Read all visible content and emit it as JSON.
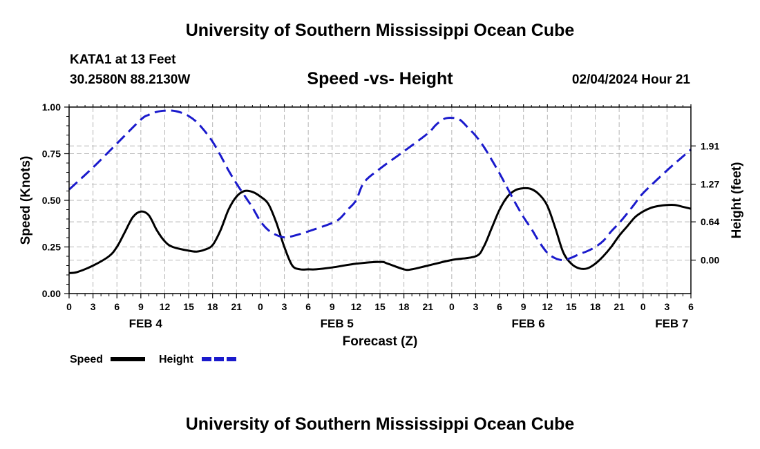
{
  "header": {
    "main_title": "University of Southern Mississippi Ocean Cube",
    "station": "KATA1 at 13 Feet",
    "coordinates": "30.2580N  88.2130W",
    "subtitle": "Speed -vs- Height",
    "datetime": "02/04/2024 Hour 21",
    "footer_title": "University of Southern Mississippi Ocean Cube"
  },
  "chart_data": {
    "type": "line",
    "title": "Speed -vs- Height",
    "xlabel": "Forecast (Z)",
    "ylabel_left": "Speed (Knots)",
    "ylabel_right": "Height (feet)",
    "x_unit": "hours since FEB 4 00Z",
    "xlim": [
      0,
      78
    ],
    "ylim_left": [
      0,
      1.0
    ],
    "ylim_right": [
      -0.56,
      2.56
    ],
    "grid": true,
    "left_ticks": [
      {
        "value": 0.0,
        "label": "0.00"
      },
      {
        "value": 0.25,
        "label": "0.25"
      },
      {
        "value": 0.5,
        "label": "0.50"
      },
      {
        "value": 0.75,
        "label": "0.75"
      },
      {
        "value": 1.0,
        "label": "1.00"
      }
    ],
    "right_ticks": [
      {
        "value": 0.0,
        "label": "0.00"
      },
      {
        "value": 0.64,
        "label": "0.64"
      },
      {
        "value": 1.27,
        "label": "1.27"
      },
      {
        "value": 1.91,
        "label": "1.91"
      }
    ],
    "x_ticks": [
      {
        "value": 0,
        "label": "0"
      },
      {
        "value": 3,
        "label": "3"
      },
      {
        "value": 6,
        "label": "6"
      },
      {
        "value": 9,
        "label": "9"
      },
      {
        "value": 12,
        "label": "12"
      },
      {
        "value": 15,
        "label": "15"
      },
      {
        "value": 18,
        "label": "18"
      },
      {
        "value": 21,
        "label": "21"
      },
      {
        "value": 24,
        "label": "0"
      },
      {
        "value": 27,
        "label": "3"
      },
      {
        "value": 30,
        "label": "6"
      },
      {
        "value": 33,
        "label": "9"
      },
      {
        "value": 36,
        "label": "12"
      },
      {
        "value": 39,
        "label": "15"
      },
      {
        "value": 42,
        "label": "18"
      },
      {
        "value": 45,
        "label": "21"
      },
      {
        "value": 48,
        "label": "0"
      },
      {
        "value": 51,
        "label": "3"
      },
      {
        "value": 54,
        "label": "6"
      },
      {
        "value": 57,
        "label": "9"
      },
      {
        "value": 60,
        "label": "12"
      },
      {
        "value": 63,
        "label": "15"
      },
      {
        "value": 66,
        "label": "18"
      },
      {
        "value": 69,
        "label": "21"
      },
      {
        "value": 72,
        "label": "0"
      },
      {
        "value": 75,
        "label": "3"
      },
      {
        "value": 78,
        "label": "6"
      }
    ],
    "day_labels": [
      {
        "value": 9.6,
        "label": "FEB 4"
      },
      {
        "value": 33.6,
        "label": "FEB 5"
      },
      {
        "value": 57.6,
        "label": "FEB 6"
      },
      {
        "value": 75.6,
        "label": "FEB 7"
      }
    ],
    "series": [
      {
        "name": "Speed",
        "axis": "left",
        "color": "#000000",
        "dash": "solid",
        "x": [
          0,
          1,
          3,
          5,
          6,
          7,
          8,
          9,
          10,
          11,
          12,
          13,
          15,
          16,
          17,
          18,
          19,
          20,
          21,
          22,
          23,
          24,
          25,
          26,
          27,
          28,
          29,
          30,
          31,
          33,
          36,
          39,
          40,
          42,
          43,
          45,
          48,
          51,
          52,
          53,
          54,
          55,
          56,
          57,
          58,
          59,
          60,
          61,
          62,
          63,
          64,
          65,
          66,
          67,
          68,
          69,
          70,
          71,
          72,
          73,
          74,
          75,
          76,
          77,
          78
        ],
        "values": [
          0.11,
          0.115,
          0.15,
          0.2,
          0.25,
          0.33,
          0.41,
          0.44,
          0.42,
          0.34,
          0.28,
          0.25,
          0.23,
          0.225,
          0.235,
          0.26,
          0.34,
          0.45,
          0.52,
          0.55,
          0.545,
          0.52,
          0.48,
          0.38,
          0.25,
          0.15,
          0.13,
          0.13,
          0.13,
          0.14,
          0.16,
          0.17,
          0.16,
          0.13,
          0.13,
          0.15,
          0.18,
          0.2,
          0.25,
          0.35,
          0.45,
          0.52,
          0.555,
          0.565,
          0.56,
          0.53,
          0.47,
          0.35,
          0.22,
          0.16,
          0.135,
          0.135,
          0.16,
          0.2,
          0.25,
          0.31,
          0.36,
          0.41,
          0.44,
          0.46,
          0.47,
          0.475,
          0.475,
          0.465,
          0.455
        ]
      },
      {
        "name": "Height",
        "axis": "right",
        "color": "#1a1acc",
        "dash": "dashed",
        "x": [
          0,
          3,
          6,
          9,
          10,
          11,
          12,
          13,
          14,
          15,
          16,
          17,
          18,
          19,
          20,
          21,
          22,
          23,
          24,
          25,
          26,
          27,
          28,
          30,
          33,
          34,
          35,
          36,
          37,
          39,
          42,
          45,
          46,
          47,
          48,
          49,
          50,
          51,
          52,
          53,
          54,
          55,
          56,
          57,
          58,
          59,
          60,
          61,
          62,
          63,
          64,
          65,
          66,
          67,
          68,
          69,
          70,
          71,
          72,
          75,
          78
        ],
        "values": [
          1.18,
          1.55,
          1.95,
          2.35,
          2.43,
          2.48,
          2.5,
          2.5,
          2.47,
          2.41,
          2.31,
          2.16,
          1.98,
          1.75,
          1.5,
          1.28,
          1.08,
          0.88,
          0.65,
          0.5,
          0.42,
          0.38,
          0.4,
          0.48,
          0.62,
          0.7,
          0.85,
          1.0,
          1.3,
          1.53,
          1.82,
          2.12,
          2.26,
          2.36,
          2.38,
          2.35,
          2.22,
          2.08,
          1.9,
          1.68,
          1.45,
          1.2,
          0.95,
          0.72,
          0.52,
          0.3,
          0.12,
          0.03,
          0.0,
          0.04,
          0.1,
          0.15,
          0.22,
          0.32,
          0.48,
          0.62,
          0.78,
          0.95,
          1.12,
          1.5,
          1.85
        ]
      }
    ],
    "legend": [
      {
        "label": "Speed",
        "color": "#000000",
        "dash": "solid"
      },
      {
        "label": "Height",
        "color": "#1a1acc",
        "dash": "dashed"
      }
    ],
    "legend_position": "bottom-left"
  }
}
